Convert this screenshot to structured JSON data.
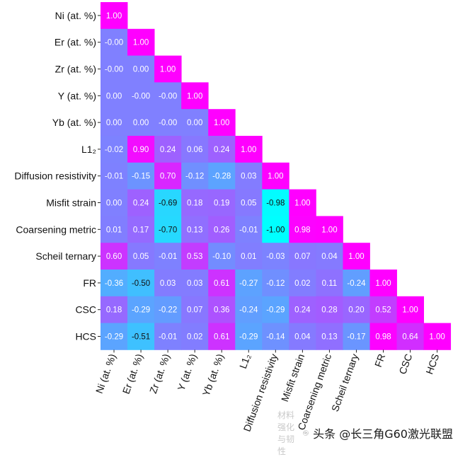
{
  "chart_data": {
    "type": "heatmap",
    "title": "",
    "xlabel": "",
    "ylabel": "",
    "labels": [
      "Ni (at. %)",
      "Er (at. %)",
      "Zr (at. %)",
      "Y (at. %)",
      "Yb (at. %)",
      "L1₂",
      "Diffusion resistivity",
      "Misfit strain",
      "Coarsening metric",
      "Scheil ternary",
      "FR",
      "CSC",
      "HCS"
    ],
    "value_range": [
      -1,
      1
    ],
    "colormap": [
      "#00ffff",
      "#ff00ff"
    ],
    "value_format": "0.00",
    "matrix": [
      [
        1.0
      ],
      [
        -0.0,
        1.0
      ],
      [
        -0.0,
        0.0,
        1.0
      ],
      [
        0.0,
        -0.0,
        -0.0,
        1.0
      ],
      [
        0.0,
        0.0,
        -0.0,
        0.0,
        1.0
      ],
      [
        -0.02,
        0.9,
        0.24,
        0.06,
        0.24,
        1.0
      ],
      [
        -0.01,
        -0.15,
        0.7,
        -0.12,
        -0.28,
        0.03,
        1.0
      ],
      [
        0.0,
        0.24,
        -0.69,
        0.18,
        0.19,
        0.05,
        -0.98,
        1.0
      ],
      [
        0.01,
        0.17,
        -0.7,
        0.13,
        0.26,
        -0.01,
        -1.0,
        0.98,
        1.0
      ],
      [
        0.6,
        0.05,
        -0.01,
        0.53,
        -0.1,
        0.01,
        -0.03,
        0.07,
        0.04,
        1.0
      ],
      [
        -0.36,
        -0.5,
        0.03,
        0.03,
        0.61,
        -0.27,
        -0.12,
        0.02,
        0.11,
        -0.24,
        1.0
      ],
      [
        0.18,
        -0.29,
        -0.22,
        0.07,
        0.36,
        -0.24,
        -0.29,
        0.24,
        0.28,
        0.2,
        0.52,
        1.0
      ],
      [
        -0.29,
        -0.51,
        -0.01,
        0.02,
        0.61,
        -0.29,
        -0.14,
        0.04,
        0.13,
        -0.17,
        0.98,
        0.64,
        1.0
      ]
    ]
  },
  "watermark": {
    "faded_text": "材料强化与韧性",
    "icon": "chat-bubble-icon",
    "text": "头条 @长三角G60激光联盟"
  }
}
